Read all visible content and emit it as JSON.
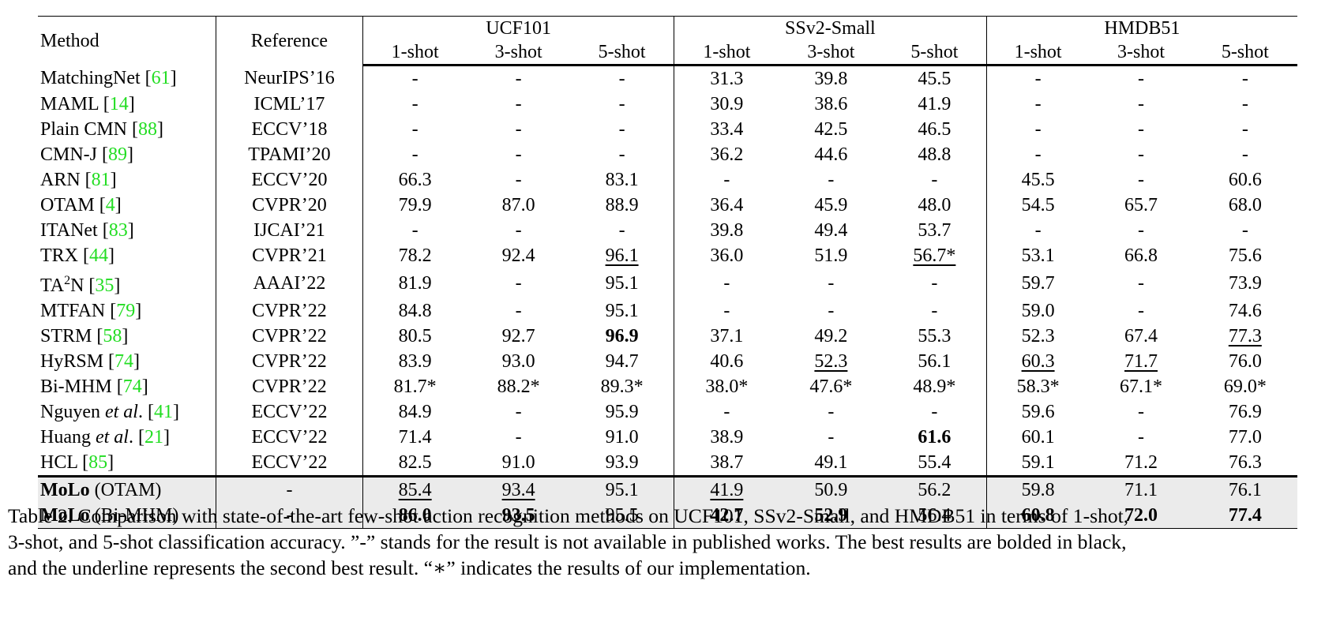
{
  "table": {
    "headers": {
      "method": "Method",
      "reference": "Reference",
      "groups": [
        "UCF101",
        "SSv2-Small",
        "HMDB51"
      ],
      "shots": [
        "1-shot",
        "3-shot",
        "5-shot"
      ]
    },
    "rows": [
      {
        "name": "MatchingNet ",
        "cite": "61",
        "ref": "NeurIPS’16",
        "values": [
          "-",
          "-",
          "-",
          "31.3",
          "39.8",
          "45.5",
          "-",
          "-",
          "-"
        ]
      },
      {
        "name": "MAML ",
        "cite": "14",
        "ref": "ICML’17",
        "values": [
          "-",
          "-",
          "-",
          "30.9",
          "38.6",
          "41.9",
          "-",
          "-",
          "-"
        ]
      },
      {
        "name": "Plain CMN ",
        "cite": "88",
        "ref": "ECCV’18",
        "values": [
          "-",
          "-",
          "-",
          "33.4",
          "42.5",
          "46.5",
          "-",
          "-",
          "-"
        ]
      },
      {
        "name": "CMN-J ",
        "cite": "89",
        "ref": "TPAMI’20",
        "values": [
          "-",
          "-",
          "-",
          "36.2",
          "44.6",
          "48.8",
          "-",
          "-",
          "-"
        ]
      },
      {
        "name": "ARN ",
        "cite": "81",
        "ref": "ECCV’20",
        "values": [
          "66.3",
          "-",
          "83.1",
          "-",
          "-",
          "-",
          "45.5",
          "-",
          "60.6"
        ]
      },
      {
        "name": "OTAM ",
        "cite": "4",
        "ref": "CVPR’20",
        "values": [
          "79.9",
          "87.0",
          "88.9",
          "36.4",
          "45.9",
          "48.0",
          "54.5",
          "65.7",
          "68.0"
        ]
      },
      {
        "name": "ITANet ",
        "cite": "83",
        "ref": "IJCAI’21",
        "values": [
          "-",
          "-",
          "-",
          "39.8",
          "49.4",
          "53.7",
          "-",
          "-",
          "-"
        ]
      },
      {
        "name": "TRX ",
        "cite": "44",
        "ref": "CVPR’21",
        "values": [
          "78.2",
          "92.4",
          "96.1",
          "36.0",
          "51.9",
          "56.7*",
          "53.1",
          "66.8",
          "75.6"
        ],
        "underline": [
          2,
          5
        ]
      },
      {
        "name_prefix": "TA",
        "name_sup": "2",
        "name": "N ",
        "cite": "35",
        "ref": "AAAI’22",
        "values": [
          "81.9",
          "-",
          "95.1",
          "-",
          "-",
          "-",
          "59.7",
          "-",
          "73.9"
        ]
      },
      {
        "name": "MTFAN ",
        "cite": "79",
        "ref": "CVPR’22",
        "values": [
          "84.8",
          "-",
          "95.1",
          "-",
          "-",
          "-",
          "59.0",
          "-",
          "74.6"
        ]
      },
      {
        "name": "STRM ",
        "cite": "58",
        "ref": "CVPR’22",
        "values": [
          "80.5",
          "92.7",
          "96.9",
          "37.1",
          "49.2",
          "55.3",
          "52.3",
          "67.4",
          "77.3"
        ],
        "bold": [
          2
        ],
        "underline": [
          8
        ]
      },
      {
        "name": "HyRSM ",
        "cite": "74",
        "ref": "CVPR’22",
        "values": [
          "83.9",
          "93.0",
          "94.7",
          "40.6",
          "52.3",
          "56.1",
          "60.3",
          "71.7",
          "76.0"
        ],
        "underline": [
          4,
          6,
          7
        ]
      },
      {
        "name": "Bi-MHM ",
        "cite": "74",
        "ref": "CVPR’22",
        "values": [
          "81.7*",
          "88.2*",
          "89.3*",
          "38.0*",
          "47.6*",
          "48.9*",
          "58.3*",
          "67.1*",
          "69.0*"
        ]
      },
      {
        "name": "Nguyen ",
        "italic": "et al",
        "name_suffix": ". ",
        "cite": "41",
        "ref": "ECCV’22",
        "values": [
          "84.9",
          "-",
          "95.9",
          "-",
          "-",
          "-",
          "59.6",
          "-",
          "76.9"
        ]
      },
      {
        "name": "Huang ",
        "italic": "et al",
        "name_suffix": ". ",
        "cite": "21",
        "ref": "ECCV’22",
        "values": [
          "71.4",
          "-",
          "91.0",
          "38.9",
          "-",
          "61.6",
          "60.1",
          "-",
          "77.0"
        ],
        "bold": [
          5
        ]
      },
      {
        "name": "HCL ",
        "cite": "85",
        "ref": "ECCV’22",
        "values": [
          "82.5",
          "91.0",
          "93.9",
          "38.7",
          "49.1",
          "55.4",
          "59.1",
          "71.2",
          "76.3"
        ]
      }
    ],
    "ours": [
      {
        "name_bold": "MoLo",
        "name_rest": " (OTAM)",
        "ref": "-",
        "values": [
          "85.4",
          "93.4",
          "95.1",
          "41.9",
          "50.9",
          "56.2",
          "59.8",
          "71.1",
          "76.1"
        ],
        "underline": [
          0,
          1,
          3
        ]
      },
      {
        "name_bold": "MoLo",
        "name_rest": " (Bi-MHM)",
        "ref": "-",
        "values": [
          "86.0",
          "93.5",
          "95.5",
          "42.7",
          "52.9",
          "56.4",
          "60.8",
          "72.0",
          "77.4"
        ],
        "bold": [
          0,
          1,
          3,
          4,
          6,
          7,
          8
        ]
      }
    ]
  },
  "caption": [
    "Table 2. Comparison with state-of-the-art few-shot action recognition methods on UCF101, SSv2-Small, and HMDB51 in terms of 1-shot,",
    "3-shot, and 5-shot classification accuracy. ”-” stands for the result is not available in published works. The best results are bolded in black,",
    "and the underline represents the second best result. “∗” indicates the results of our implementation."
  ],
  "colors": {
    "citation": "#22dd22",
    "ours_background": "#ebebeb"
  }
}
